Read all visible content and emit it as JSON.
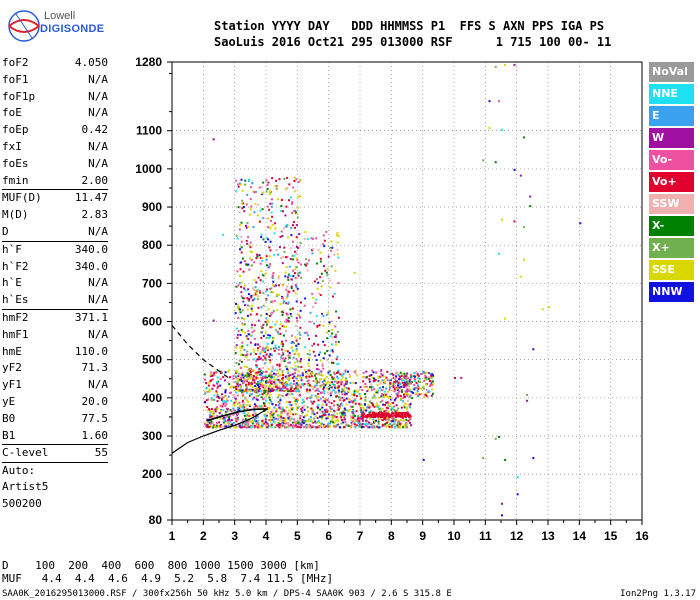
{
  "logo": {
    "line1": "Lowell",
    "line2": "DIGISONDE"
  },
  "header": {
    "row1": "Station YYYY DAY   DDD HHMMSS P1  FFS S AXN PPS IGA PS",
    "row2": "SaoLuis 2016 Oct21 295 013000 RSF      1 715 100 00- 11"
  },
  "params": [
    {
      "name": "foF2",
      "value": "4.050"
    },
    {
      "name": "foF1",
      "value": "N/A"
    },
    {
      "name": "foF1p",
      "value": "N/A"
    },
    {
      "name": "foE",
      "value": "N/A"
    },
    {
      "name": "foEp",
      "value": "0.42"
    },
    {
      "name": "fxI",
      "value": "N/A"
    },
    {
      "name": "foEs",
      "value": "N/A"
    },
    {
      "name": "fmin",
      "value": "2.00"
    },
    {
      "sep": true
    },
    {
      "name": "MUF(D)",
      "value": "11.47"
    },
    {
      "name": "M(D)",
      "value": "2.83"
    },
    {
      "name": "D",
      "value": "N/A"
    },
    {
      "sep": true
    },
    {
      "name": "h`F",
      "value": "340.0"
    },
    {
      "name": "h`F2",
      "value": "340.0"
    },
    {
      "name": "h`E",
      "value": "N/A"
    },
    {
      "name": "h`Es",
      "value": "N/A"
    },
    {
      "sep": true
    },
    {
      "name": "hmF2",
      "value": "371.1"
    },
    {
      "name": "hmF1",
      "value": "N/A"
    },
    {
      "name": "hmE",
      "value": "110.0"
    },
    {
      "name": "yF2",
      "value": "71.3"
    },
    {
      "name": "yF1",
      "value": "N/A"
    },
    {
      "name": "yE",
      "value": "20.0"
    },
    {
      "name": "B0",
      "value": "77.5"
    },
    {
      "name": "B1",
      "value": "1.60"
    },
    {
      "sep": true
    },
    {
      "name": "C-level",
      "value": "55"
    },
    {
      "sep": true
    }
  ],
  "auto": {
    "line1": "Auto:",
    "line2": "Artist5",
    "line3": "500200"
  },
  "legend": [
    {
      "label": "NoVal",
      "color": "#9a9a9a"
    },
    {
      "label": "NNE",
      "color": "#1ee0f0"
    },
    {
      "label": "E",
      "color": "#3aa0f0"
    },
    {
      "label": "W",
      "color": "#a010a0"
    },
    {
      "label": "Vo-",
      "color": "#f050a0"
    },
    {
      "label": "Vo+",
      "color": "#e00030"
    },
    {
      "label": "SSW",
      "color": "#f0b0b0"
    },
    {
      "label": "X-",
      "color": "#008000"
    },
    {
      "label": "X+",
      "color": "#70b050"
    },
    {
      "label": "SSE",
      "color": "#d8d800"
    },
    {
      "label": "NNW",
      "color": "#1010e0"
    }
  ],
  "footer": {
    "d_row": "D    100  200  400  600  800 1000 1500 3000 [km]",
    "muf_row": "MUF   4.4  4.4  4.6  4.9  5.2  5.8  7.4 11.5 [MHz]",
    "file": "SAA0K_2016295013000.RSF / 300fx256h 50 kHz 5.0 km / DPS-4 SAA0K 903 / 2.6 S 315.8 E",
    "version": "Ion2Png 1.3.17"
  },
  "chart_data": {
    "type": "scatter",
    "xlim": [
      1,
      16
    ],
    "ylim": [
      80,
      1280
    ],
    "x_ticks": [
      "1",
      "2",
      "3",
      "4",
      "5",
      "6",
      "7",
      "8",
      "9",
      "10",
      "11",
      "12",
      "13",
      "14",
      "15",
      "16"
    ],
    "y_ticks": [
      "80",
      "200",
      "300",
      "400",
      "500",
      "600",
      "700",
      "800",
      "900",
      "1000",
      "1100",
      "1280"
    ],
    "grid": true,
    "profile_curve": {
      "x": [
        1.0,
        1.5,
        2.0,
        2.5,
        3.0,
        3.5,
        4.05
      ],
      "y": [
        255,
        283,
        300,
        315,
        328,
        345,
        371
      ]
    },
    "dashed_curve": {
      "x": [
        1.0,
        1.5,
        2.0,
        2.5,
        2.85
      ],
      "y": [
        590,
        540,
        500,
        470,
        450
      ]
    },
    "trace_curve": {
      "x": [
        2.1,
        2.6,
        3.1,
        3.6,
        4.05
      ],
      "y": [
        340,
        352,
        363,
        370,
        371
      ]
    }
  }
}
